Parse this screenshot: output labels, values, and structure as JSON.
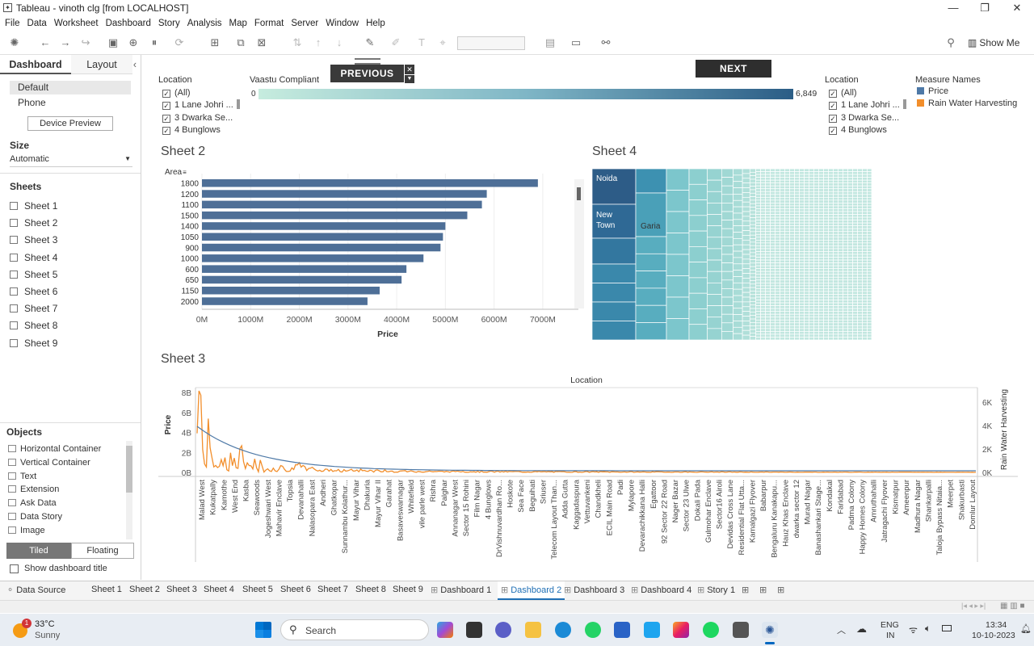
{
  "window": {
    "title": "Tableau - vinoth clg [from LOCALHOST]"
  },
  "menu": [
    "File",
    "Data",
    "Worksheet",
    "Dashboard",
    "Story",
    "Analysis",
    "Map",
    "Format",
    "Server",
    "Window",
    "Help"
  ],
  "toolbar": {
    "show_me": "Show Me"
  },
  "left_panel": {
    "tab_dashboard": "Dashboard",
    "tab_layout": "Layout",
    "device_default": "Default",
    "device_phone": "Phone",
    "device_preview": "Device Preview",
    "size_label": "Size",
    "size_value": "Automatic",
    "sheets_label": "Sheets",
    "sheets": [
      "Sheet 1",
      "Sheet 2",
      "Sheet 3",
      "Sheet 4",
      "Sheet 5",
      "Sheet 6",
      "Sheet 7",
      "Sheet 8",
      "Sheet 9"
    ],
    "objects_label": "Objects",
    "objects": [
      "Horizontal Container",
      "Vertical Container",
      "Text",
      "Extension",
      "Ask Data",
      "Data Story",
      "Image"
    ],
    "tiled": "Tiled",
    "floating": "Floating",
    "show_title": "Show dashboard title"
  },
  "nav": {
    "previous": "PREVIOUS",
    "next": "NEXT"
  },
  "filter_left": {
    "title": "Location",
    "items": [
      "(All)",
      "1 Lane Johri ...",
      "3 Dwarka Se...",
      "4 Bunglows"
    ]
  },
  "vaastu": {
    "title": "Vaastu Compliant",
    "min": "0",
    "max": "6,849"
  },
  "filter_right": {
    "title": "Location",
    "items": [
      "(All)",
      "1 Lane Johri ...",
      "3 Dwarka Se...",
      "4 Bunglows"
    ]
  },
  "legend": {
    "title": "Measure Names",
    "items": [
      {
        "label": "Price",
        "color": "#4e79a7"
      },
      {
        "label": "Rain Water Harvesting",
        "color": "#f28e2b"
      }
    ]
  },
  "sheet2": {
    "title": "Sheet 2",
    "row_header": "Area",
    "x_label": "Price"
  },
  "sheet4": {
    "title": "Sheet 4",
    "labels": [
      "Noida",
      "New Town",
      "Garia"
    ]
  },
  "sheet3": {
    "title": "Sheet 3",
    "top_label": "Location",
    "y_left": "Price",
    "y_right": "Rain Water Harvesting"
  },
  "chart_data": [
    {
      "type": "bar",
      "categories": [
        "1800",
        "1200",
        "1100",
        "1500",
        "1400",
        "1050",
        "900",
        "1000",
        "600",
        "650",
        "1150",
        "2000"
      ],
      "values": [
        6900,
        5850,
        5750,
        5450,
        5000,
        4950,
        4900,
        4550,
        4200,
        4100,
        3650,
        3400
      ],
      "ticks": [
        "0M",
        "1000M",
        "2000M",
        "3000M",
        "4000M",
        "5000M",
        "6000M",
        "7000M"
      ],
      "xlabel": "Price",
      "ylabel": "Area",
      "xlim": [
        0,
        7400
      ],
      "unit": "M"
    },
    {
      "type": "line",
      "left_ticks": [
        "8B",
        "6B",
        "4B",
        "2B",
        "0B"
      ],
      "right_ticks": [
        "6K",
        "4K",
        "2K",
        "0K"
      ],
      "categories": [
        "Malad West",
        "Kukatpally",
        "Kamothe",
        "West End",
        "Kasba",
        "Seawoods",
        "Jogeshwari West",
        "Mahavir Enclave",
        "Topsia",
        "Devanahalli",
        "Nalasopara East",
        "Andheri",
        "Ghatkopar",
        "Sunnambu Kolathur...",
        "Mayur Vihar",
        "Dhakuria",
        "Mayur Vihar II",
        "Garahat",
        "Basaveswarnagar",
        "Whitefield",
        "vile parle west",
        "Rishra",
        "Palghar",
        "Annanagar West",
        "Sector 15 Rohini",
        "Film Nagar",
        "4 Bunglows",
        "DrVishnuvardhan Ro...",
        "Hoskote",
        "Sea Face",
        "Beguihati",
        "Sriuser",
        "Telecom Layout Than...",
        "Adda Gutta",
        "Kaggadaspura",
        "Vettuvankeni",
        "Chandkheli",
        "ECIL Main Road",
        "Padi",
        "Mylapore",
        "Devarachikkana Halli",
        "Egattoor",
        "92 Sector 22 Road",
        "Nager Bazar",
        "Sector 23 Ulwe",
        "Dokali Pada",
        "Gulmohar Enclave",
        "Sector16 Airoli",
        "Devidas Cross Lane",
        "Residential Flat Utta...",
        "Kamalgazi Flyover",
        "Babarpur",
        "Bengaluru Kanakapu...",
        "Hauz Khas Enclave",
        "dwarka sector 12",
        "Murad Nagar",
        "Banashankari Stage...",
        "Kondakal",
        "Faridabad",
        "Padma Colony",
        "Happy Homes Colony",
        "Amruthahalli",
        "Jatragachi Flyover",
        "Kismatpur",
        "Ameenpur",
        "Madhura Nagar",
        "Shankarpalli",
        "Taloja Bypass Nitaia...",
        "Meerpet",
        "Shakurbasti",
        "Domlur Layout"
      ],
      "series": [
        {
          "name": "Price",
          "color": "#4e79a7"
        },
        {
          "name": "Rain Water Harvesting",
          "color": "#f28e2b"
        }
      ]
    }
  ],
  "bottom_tabs": [
    "Data Source",
    "Sheet 1",
    "Sheet 2",
    "Sheet 3",
    "Sheet 4",
    "Sheet 5",
    "Sheet 6",
    "Sheet 7",
    "Sheet 8",
    "Sheet 9",
    "Dashboard 1",
    "Dashboard 2",
    "Dashboard 3",
    "Dashboard 4",
    "Story 1"
  ],
  "taskbar": {
    "temp": "33°C",
    "weather": "Sunny",
    "badge": "1",
    "search": "Search",
    "lang1": "ENG",
    "lang2": "IN",
    "time": "13:34",
    "date": "10-10-2023"
  }
}
